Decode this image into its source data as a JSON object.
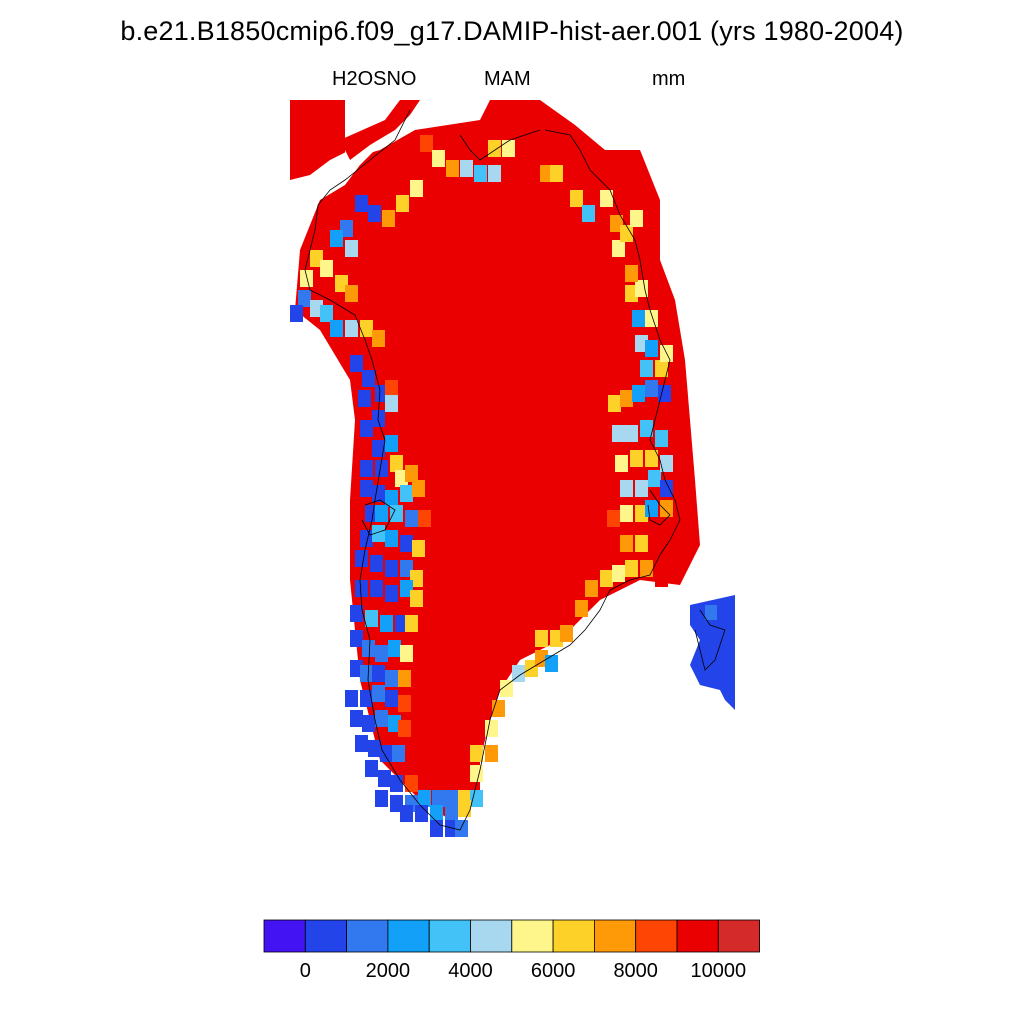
{
  "title": "b.e21.B1850cmip6.f09_g17.DAMIP-hist-aer.001 (yrs 1980-2004)",
  "subtitle": {
    "variable": "H2OSNO",
    "season": "MAM",
    "units": "mm"
  },
  "colorbar": {
    "colors": [
      "#4413f4",
      "#2344e8",
      "#3278ee",
      "#12a0f8",
      "#42c2f6",
      "#a8d8f0",
      "#fef68a",
      "#fdd128",
      "#fe9a08",
      "#fe4504",
      "#ea0000",
      "#d42a2a"
    ],
    "labels": [
      "0",
      "2000",
      "4000",
      "6000",
      "8000",
      "10000"
    ]
  },
  "map": {
    "region": "Greenland",
    "dominant_class": "10000+",
    "colors": {
      "ice": "#ea0000",
      "deep": "#d42a2a",
      "blue": "#2344e8",
      "blue2": "#3278ee",
      "cyan": "#12a0f8",
      "sky": "#42c2f6",
      "pale": "#a8d8f0",
      "yellow": "#fef68a",
      "gold": "#fdd128",
      "orange": "#fe9a08",
      "redorange": "#fe4504"
    }
  }
}
